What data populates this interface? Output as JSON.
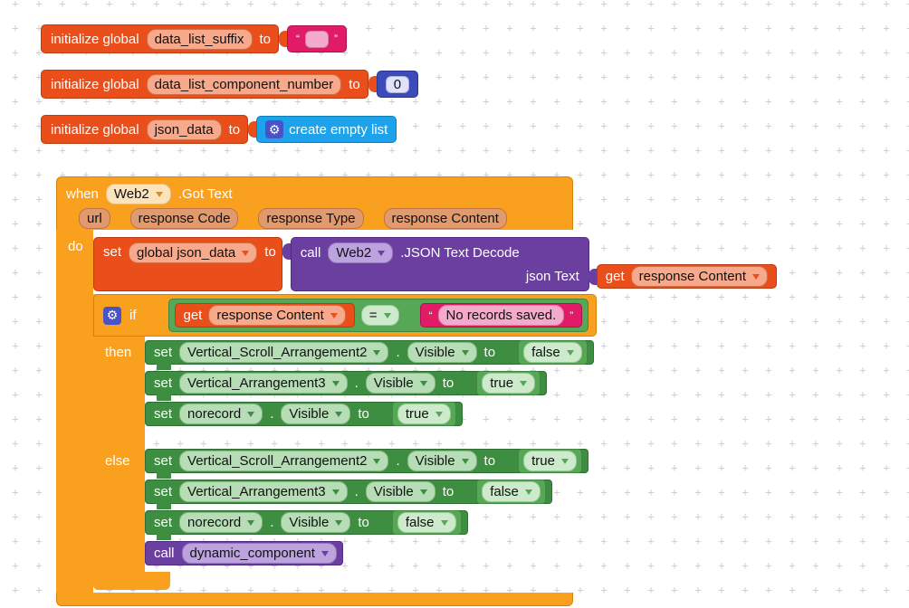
{
  "background": {
    "pattern": "plus-grid",
    "plus_glyph": "+",
    "plus_color": "#cfcfcf"
  },
  "colors": {
    "variable_orange": "#E94E1B",
    "event_gold": "#F9A11E",
    "setter_green": "#3E8E41",
    "logic_green": "#56A756",
    "math_blue": "#3B4CB8",
    "list_cyan": "#1CA3EC",
    "text_magenta": "#E21B67",
    "procedure_purple": "#6B3FA0"
  },
  "glyphs": {
    "gear": "⚙",
    "quote_open": "“",
    "quote_close": "”"
  },
  "global_blocks": [
    {
      "keyword": "initialize global",
      "name": "data_list_suffix",
      "to_label": "to",
      "value": {
        "kind": "text",
        "text": ""
      }
    },
    {
      "keyword": "initialize global",
      "name": "data_list_component_number",
      "to_label": "to",
      "value": {
        "kind": "number",
        "number": "0"
      }
    },
    {
      "keyword": "initialize global",
      "name": "json_data",
      "to_label": "to",
      "value": {
        "kind": "empty_list",
        "label": "create empty list"
      }
    }
  ],
  "when_block": {
    "keyword": "when",
    "component": "Web2",
    "event": ".Got Text",
    "params": [
      "url",
      "response Code",
      "response Type",
      "response Content"
    ],
    "do_label": "do",
    "set_json_row": {
      "set_label": "set",
      "variable": "global json_data",
      "to_label": "to",
      "call_label": "call",
      "component": "Web2",
      "method": ".JSON Text Decode",
      "arg_name": "json Text",
      "arg": {
        "get_label": "get",
        "variable": "response Content"
      }
    },
    "if_block": {
      "if_label": "if",
      "condition": {
        "left": {
          "get_label": "get",
          "variable": "response Content"
        },
        "operator": "=",
        "right_text": "No records saved."
      },
      "then_label": "then",
      "then_rows": [
        {
          "set_label": "set",
          "component": "Vertical_Scroll_Arrangement2",
          "dot": ".",
          "property": "Visible",
          "to_label": "to",
          "value": "false"
        },
        {
          "set_label": "set",
          "component": "Vertical_Arrangement3",
          "dot": ".",
          "property": "Visible",
          "to_label": "to",
          "value": "true"
        },
        {
          "set_label": "set",
          "component": "norecord",
          "dot": ".",
          "property": "Visible",
          "to_label": "to",
          "value": "true"
        }
      ],
      "else_label": "else",
      "else_rows": [
        {
          "set_label": "set",
          "component": "Vertical_Scroll_Arrangement2",
          "dot": ".",
          "property": "Visible",
          "to_label": "to",
          "value": "true"
        },
        {
          "set_label": "set",
          "component": "Vertical_Arrangement3",
          "dot": ".",
          "property": "Visible",
          "to_label": "to",
          "value": "false"
        },
        {
          "set_label": "set",
          "component": "norecord",
          "dot": ".",
          "property": "Visible",
          "to_label": "to",
          "value": "false"
        }
      ],
      "call_row": {
        "call_label": "call",
        "procedure": "dynamic_component"
      }
    }
  }
}
